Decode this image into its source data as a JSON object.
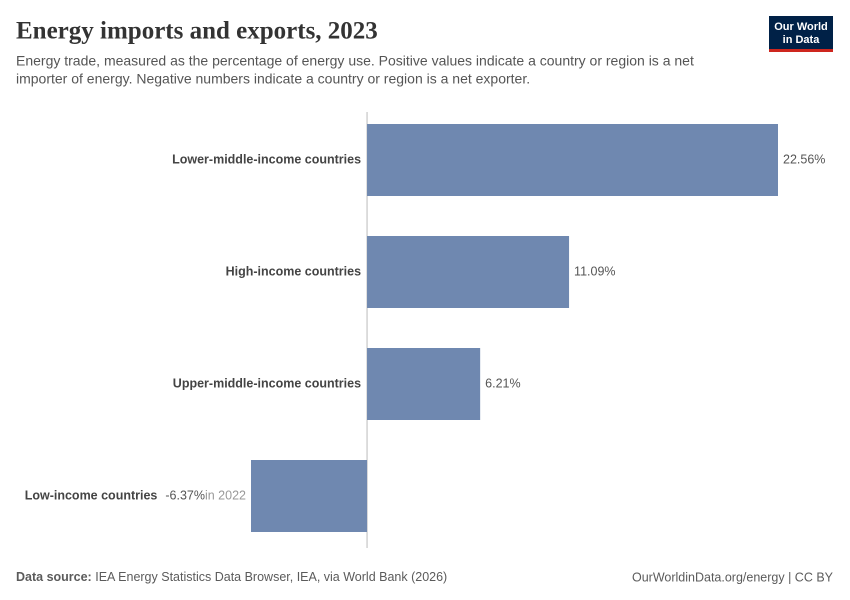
{
  "chart_data": {
    "type": "bar",
    "orientation": "horizontal",
    "title": "Energy imports and exports, 2023",
    "subtitle": [
      "Energy trade, measured as the percentage of energy use. Positive values indicate a country or region is a net",
      "importer of energy. Negative numbers indicate a country or region is a net exporter."
    ],
    "logo": [
      "Our World",
      "in Data"
    ],
    "categories": [
      "Lower-middle-income countries",
      "High-income countries",
      "Upper-middle-income countries",
      "Low-income countries"
    ],
    "values": [
      22.56,
      11.09,
      6.21,
      -6.37
    ],
    "value_labels": [
      "22.56%",
      "11.09%",
      "6.21%",
      "-6.37%"
    ],
    "notes": [
      null,
      null,
      null,
      "in 2022"
    ],
    "color": "#6f88b0",
    "xlim": [
      -6.37,
      22.56
    ],
    "source_label": "Data source:",
    "source": "IEA Energy Statistics Data Browser, IEA, via World Bank (2026)",
    "credit": "OurWorldinData.org/energy | CC BY"
  }
}
